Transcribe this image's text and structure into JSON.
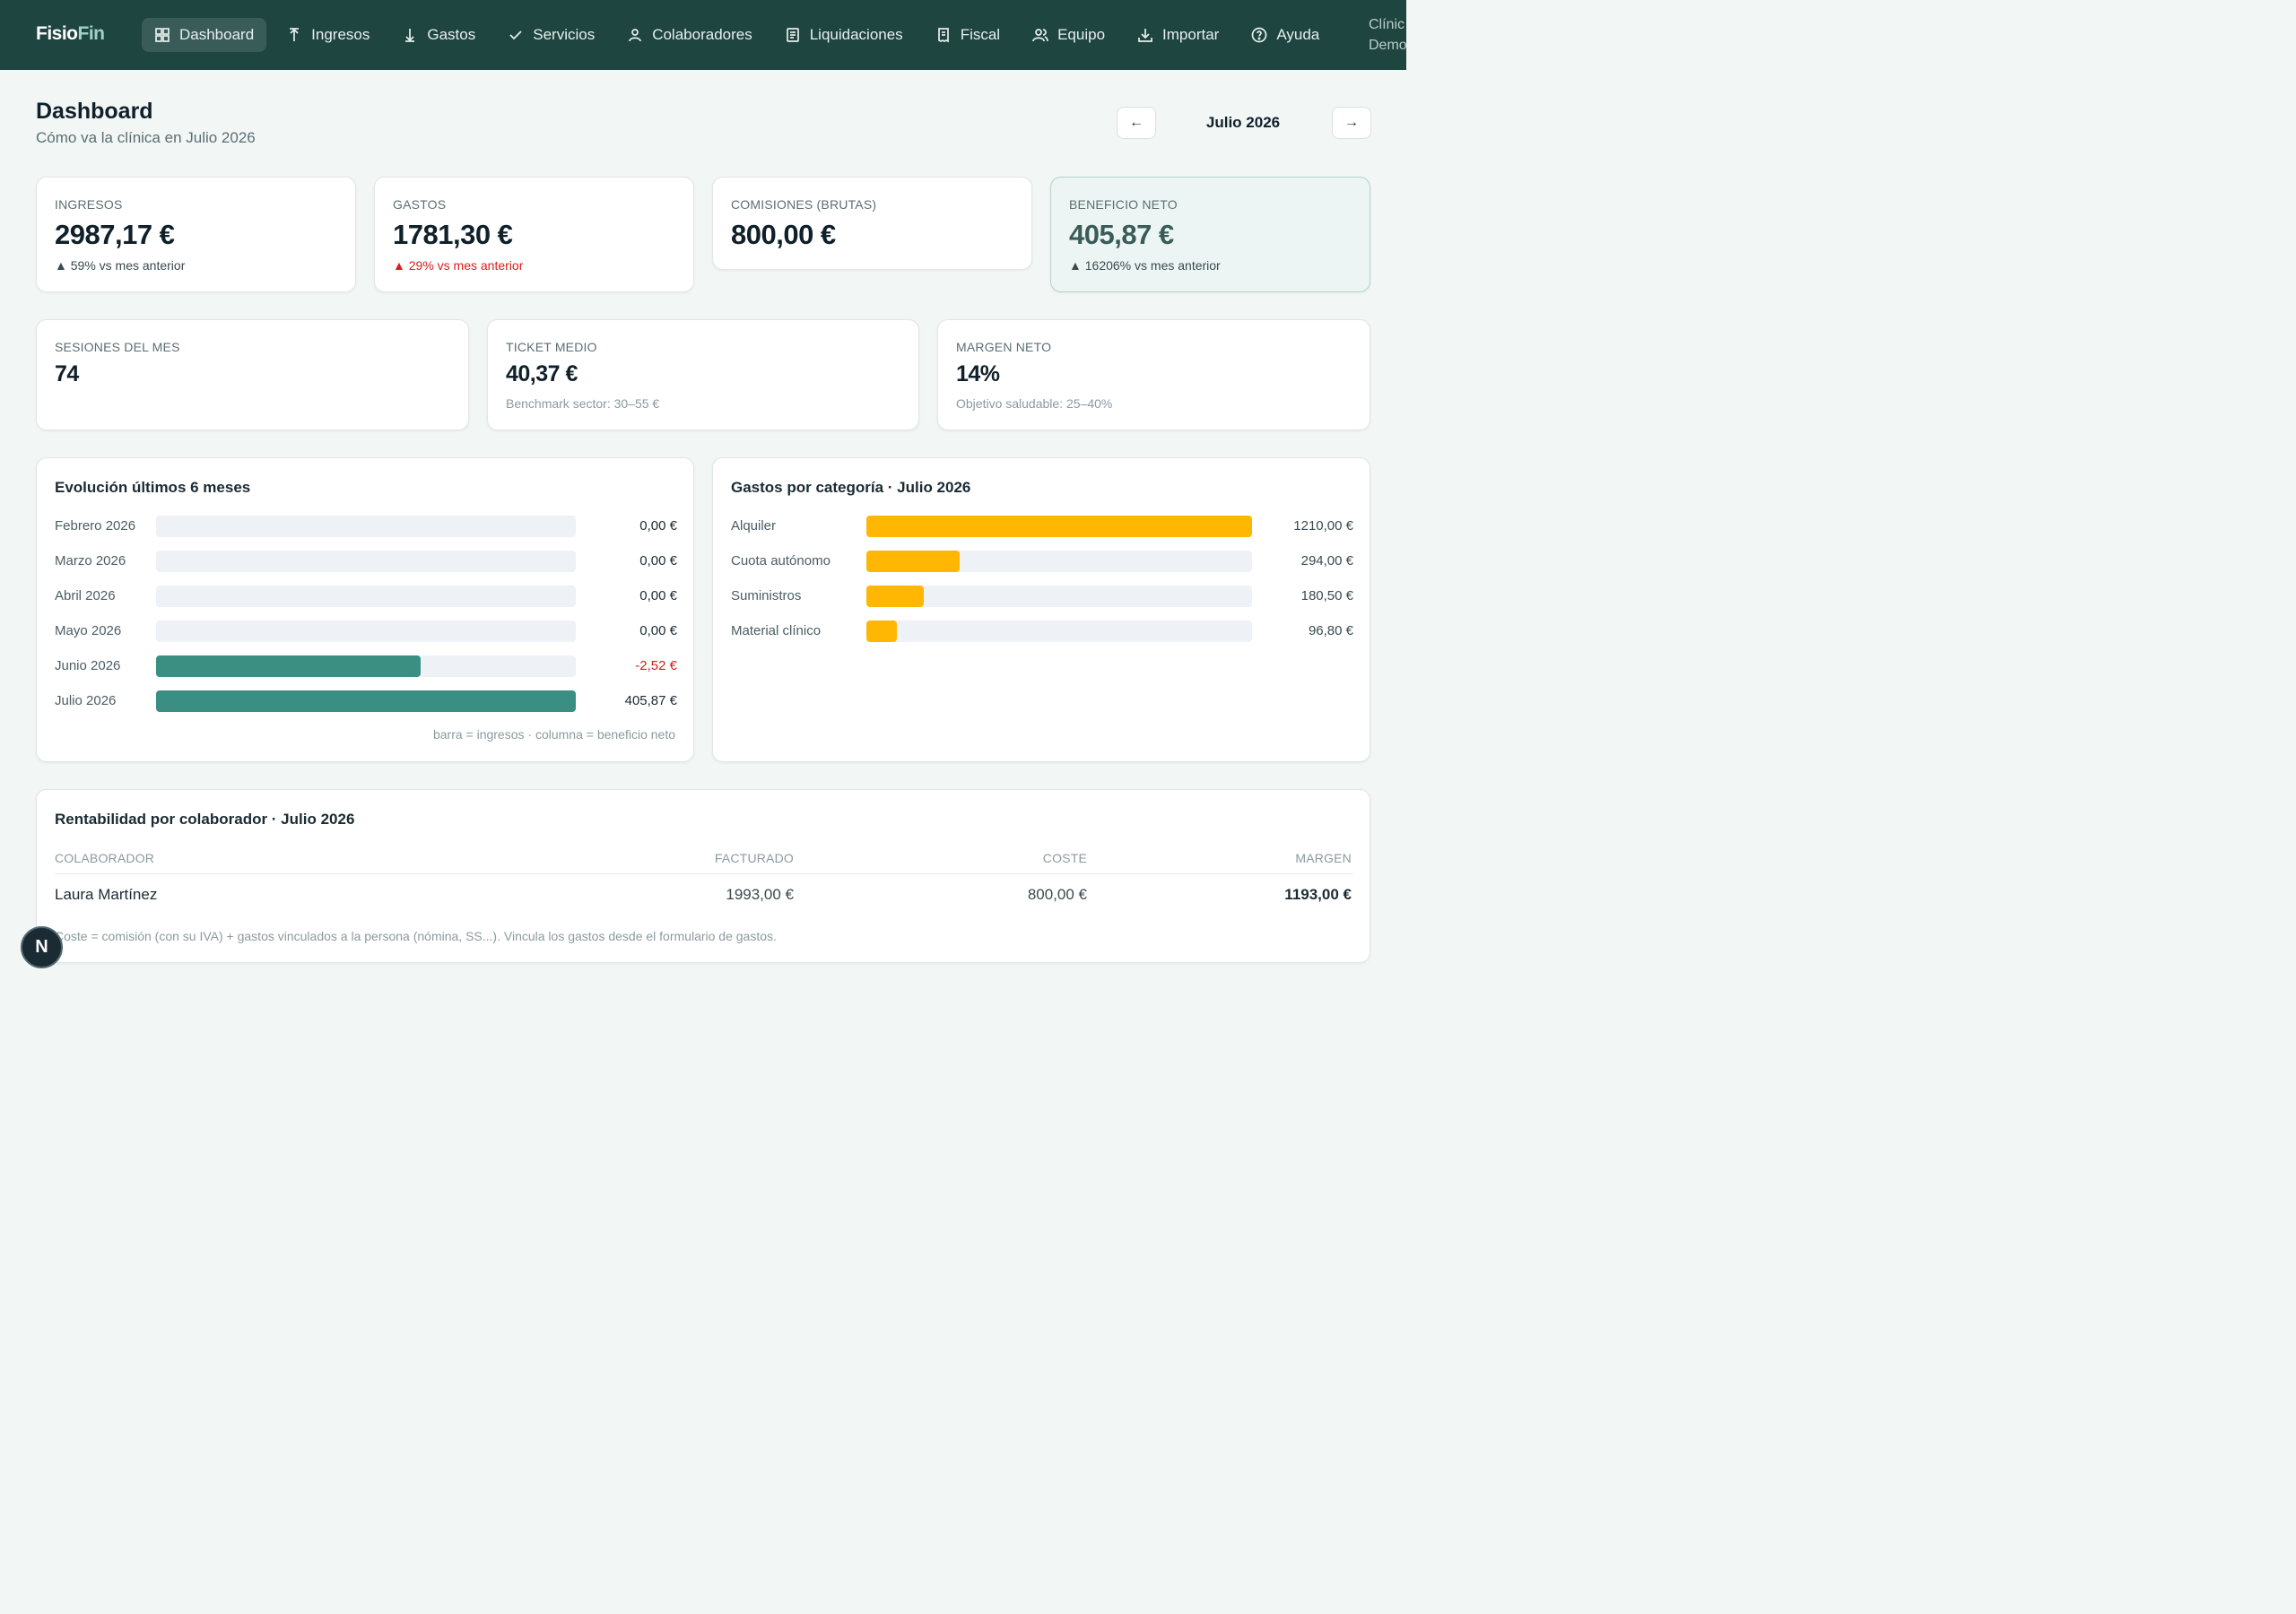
{
  "app": {
    "logo_a": "Fisio",
    "logo_b": "Fin",
    "clinic_line1": "Clínic",
    "clinic_line2": "Demo"
  },
  "nav": [
    {
      "label": "Dashboard",
      "icon": "dashboard-icon",
      "active": true
    },
    {
      "label": "Ingresos",
      "icon": "arrow-up-icon"
    },
    {
      "label": "Gastos",
      "icon": "arrow-down-icon"
    },
    {
      "label": "Servicios",
      "icon": "check-icon"
    },
    {
      "label": "Colaboradores",
      "icon": "user-icon"
    },
    {
      "label": "Liquidaciones",
      "icon": "document-icon"
    },
    {
      "label": "Fiscal",
      "icon": "receipt-icon"
    },
    {
      "label": "Equipo",
      "icon": "team-icon"
    },
    {
      "label": "Importar",
      "icon": "download-icon"
    },
    {
      "label": "Ayuda",
      "icon": "help-icon"
    }
  ],
  "header": {
    "title": "Dashboard",
    "subtitle": "Cómo va la clínica en Julio 2026",
    "prev": "←",
    "next": "→",
    "month": "Julio 2026"
  },
  "kpis": [
    {
      "label": "INGRESOS",
      "value": "2987,17 €",
      "delta": "▲ 59% vs mes anterior",
      "delta_color": "#3a4a50"
    },
    {
      "label": "GASTOS",
      "value": "1781,30 €",
      "delta": "▲ 29% vs mes anterior",
      "delta_color": "#d3201f"
    },
    {
      "label": "COMISIONES (BRUTAS)",
      "value": "800,00 €"
    },
    {
      "label": "BENEFICIO NETO",
      "value": "405,87 €",
      "delta": "▲ 16206% vs mes anterior",
      "delta_color": "#3a4a50"
    }
  ],
  "stats": [
    {
      "label": "SESIONES DEL MES",
      "value": "74",
      "note": ""
    },
    {
      "label": "TICKET MEDIO",
      "value": "40,37 €",
      "note": "Benchmark sector: 30–55 €"
    },
    {
      "label": "MARGEN NETO",
      "value": "14%",
      "note": "Objetivo saludable: 25–40%"
    }
  ],
  "evolution": {
    "title": "Evolución últimos 6 meses",
    "bar_color": "#3b8f82",
    "rows": [
      {
        "month": "Febrero 2026",
        "income_fraction": 0,
        "net": "0,00 €",
        "negative": false
      },
      {
        "month": "Marzo 2026",
        "income_fraction": 0,
        "net": "0,00 €",
        "negative": false
      },
      {
        "month": "Abril 2026",
        "income_fraction": 0,
        "net": "0,00 €",
        "negative": false
      },
      {
        "month": "Mayo 2026",
        "income_fraction": 0,
        "net": "0,00 €",
        "negative": false
      },
      {
        "month": "Junio 2026",
        "income_fraction": 0.63,
        "net": "-2,52 €",
        "negative": true
      },
      {
        "month": "Julio 2026",
        "income_fraction": 1.0,
        "net": "405,87 €",
        "negative": false
      }
    ],
    "footnote": "barra = ingresos · columna = beneficio neto"
  },
  "expenses": {
    "title": "Gastos por categoría · Julio 2026",
    "bar_color": "#ffb703",
    "max": 1210,
    "rows": [
      {
        "category": "Alquiler",
        "amount": 1210,
        "label": "1210,00 €"
      },
      {
        "category": "Cuota autónomo",
        "amount": 294,
        "label": "294,00 €"
      },
      {
        "category": "Suministros",
        "amount": 180.5,
        "label": "180,50 €"
      },
      {
        "category": "Material clínico",
        "amount": 96.8,
        "label": "96,80 €"
      }
    ]
  },
  "collab": {
    "title": "Rentabilidad por colaborador · Julio 2026",
    "headers": [
      "COLABORADOR",
      "FACTURADO",
      "COSTE",
      "MARGEN"
    ],
    "rows": [
      {
        "name": "Laura Martínez",
        "billed": "1993,00 €",
        "cost": "800,00 €",
        "margin": "1193,00 €"
      }
    ],
    "note": "Coste = comisión (con su IVA) + gastos vinculados a la persona (nómina, SS...). Vincula los gastos desde el formulario de gastos."
  },
  "fab": {
    "label": "N"
  }
}
